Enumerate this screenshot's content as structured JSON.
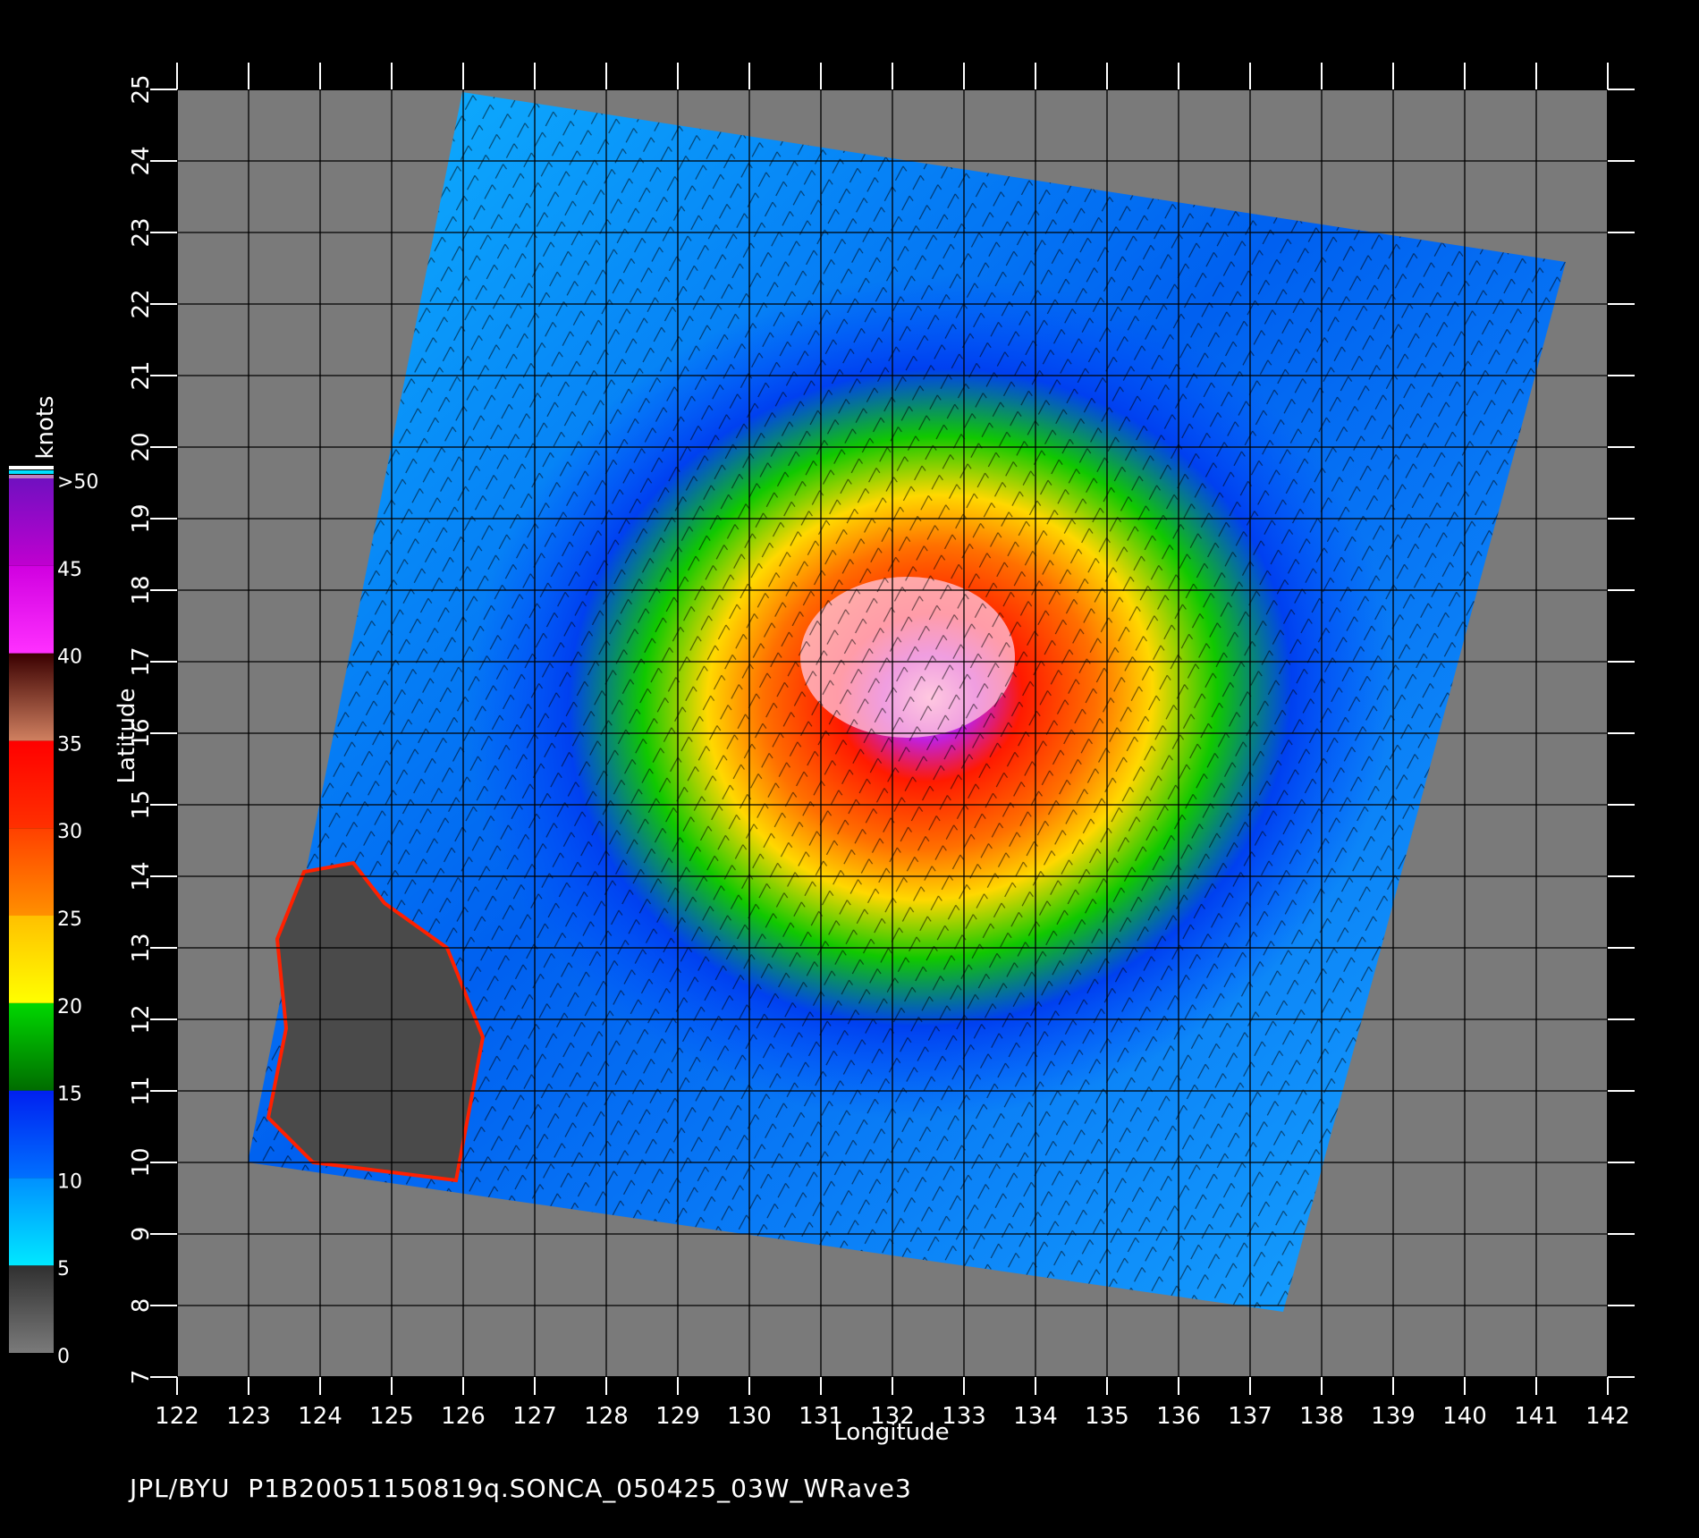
{
  "map": {
    "unit_label": "knots",
    "x_axis_label": "Longitude",
    "y_axis_label": "Latitude",
    "longitude_ticks": [
      "122",
      "123",
      "124",
      "125",
      "126",
      "127",
      "128",
      "129",
      "130",
      "131",
      "132",
      "133",
      "134",
      "135",
      "136",
      "137",
      "138",
      "139",
      "140",
      "141",
      "142"
    ],
    "latitude_ticks": [
      "25",
      "24",
      "23",
      "22",
      "21",
      "20",
      "19",
      "18",
      "17",
      "16",
      "15",
      "14",
      "13",
      "12",
      "11",
      "10",
      "9",
      "8",
      "7"
    ],
    "footer_text": "JPL/BYU  P1B20051150819q.SONCA_050425_03W_WRave3",
    "colorbar": {
      "labels": [
        ">50",
        "45",
        "40",
        "35",
        "30",
        "25",
        "20",
        "15",
        "10",
        "5",
        "0"
      ],
      "segments": [
        {
          "from": 0,
          "to": 5,
          "colors": [
            "#7a7a7a",
            "#303030"
          ]
        },
        {
          "from": 5,
          "to": 10,
          "colors": [
            "#00e8ff",
            "#0090ff"
          ]
        },
        {
          "from": 10,
          "to": 15,
          "colors": [
            "#0070ff",
            "#0020f0"
          ]
        },
        {
          "from": 15,
          "to": 20,
          "colors": [
            "#006c00",
            "#00d800"
          ]
        },
        {
          "from": 20,
          "to": 25,
          "colors": [
            "#ffff00",
            "#ffc000"
          ]
        },
        {
          "from": 25,
          "to": 30,
          "colors": [
            "#ff9000",
            "#ff4000"
          ]
        },
        {
          "from": 30,
          "to": 35,
          "colors": [
            "#ff3000",
            "#ff0000"
          ]
        },
        {
          "from": 35,
          "to": 40,
          "colors": [
            "#d08060",
            "#3a0000"
          ]
        },
        {
          "from": 40,
          "to": 45,
          "colors": [
            "#ff30ff",
            "#d000e0"
          ]
        },
        {
          "from": 45,
          "to": 50,
          "colors": [
            "#c000d0",
            "#7010c0"
          ]
        }
      ]
    },
    "colors": {
      "background": "#000000",
      "land_and_nodata": "#7a7a7a",
      "land_dark": "#4a4a4a",
      "grid_lines": "#000000",
      "tick_marks": "#ffffff"
    }
  }
}
